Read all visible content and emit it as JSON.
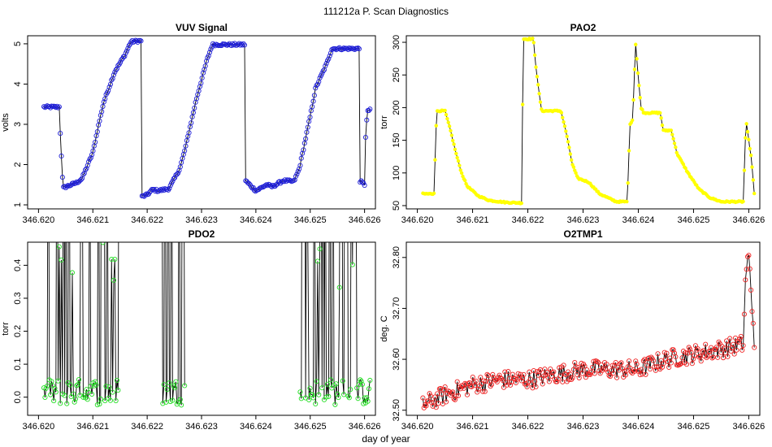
{
  "figure": {
    "title": "111212a   P. Scan Diagnostics",
    "xlabel": "day of year"
  },
  "chart_data": [
    {
      "type": "line",
      "title": "VUV Signal",
      "ylabel": "volts",
      "color": "#1f1fd6",
      "marker": "circle",
      "xlim": [
        346.6198,
        346.6262
      ],
      "ylim": [
        0.9,
        5.2
      ],
      "xticks": [
        346.62,
        346.621,
        346.622,
        346.623,
        346.624,
        346.625,
        346.626
      ],
      "xtick_labels": [
        "346.620",
        "346.621",
        "346.622",
        "346.623",
        "346.624",
        "346.625",
        "346.626"
      ],
      "yticks": [
        1,
        2,
        3,
        4,
        5
      ],
      "ytick_labels": [
        "1",
        "2",
        "3",
        "4",
        "5"
      ],
      "x_start": 346.6201,
      "x_end": 346.6261,
      "n": 300,
      "curve": [
        [
          346.6201,
          3.43
        ],
        [
          346.6204,
          3.43
        ],
        [
          346.6204,
          2.82
        ],
        [
          346.62045,
          1.42
        ],
        [
          346.6207,
          1.55
        ],
        [
          346.6208,
          1.65
        ],
        [
          346.621,
          2.3
        ],
        [
          346.6211,
          2.95
        ],
        [
          346.6212,
          3.55
        ],
        [
          346.6214,
          4.3
        ],
        [
          346.6216,
          4.75
        ],
        [
          346.6217,
          5.05
        ],
        [
          346.6219,
          5.08
        ],
        [
          346.62185,
          2.65
        ],
        [
          346.6219,
          1.2
        ],
        [
          346.622,
          1.25
        ],
        [
          346.6221,
          1.38
        ],
        [
          346.6222,
          1.35
        ],
        [
          346.6224,
          1.4
        ],
        [
          346.6226,
          1.9
        ],
        [
          346.6227,
          2.4
        ],
        [
          346.6229,
          3.6
        ],
        [
          346.6231,
          4.6
        ],
        [
          346.6232,
          4.98
        ],
        [
          346.6238,
          4.98
        ],
        [
          346.62381,
          1.6
        ],
        [
          346.624,
          1.35
        ],
        [
          346.6242,
          1.5
        ],
        [
          346.6243,
          1.45
        ],
        [
          346.6245,
          1.6
        ],
        [
          346.6247,
          1.58
        ],
        [
          346.6248,
          1.9
        ],
        [
          346.625,
          3.2
        ],
        [
          346.6251,
          3.9
        ],
        [
          346.6253,
          4.5
        ],
        [
          346.6254,
          4.88
        ],
        [
          346.6259,
          4.88
        ],
        [
          346.62591,
          1.6
        ],
        [
          346.626,
          1.5
        ],
        [
          346.626,
          2.3
        ],
        [
          346.62605,
          3.3
        ],
        [
          346.6261,
          3.38
        ]
      ],
      "jitter": 0.03
    },
    {
      "type": "line",
      "title": "PAO2",
      "ylabel": "torr",
      "color": "#ffff00",
      "marker": "dot",
      "xlim": [
        346.6198,
        346.6262
      ],
      "ylim": [
        45,
        310
      ],
      "xticks": [
        346.62,
        346.621,
        346.622,
        346.623,
        346.624,
        346.625,
        346.626
      ],
      "xtick_labels": [
        "346.620",
        "346.621",
        "346.622",
        "346.623",
        "346.624",
        "346.625",
        "346.626"
      ],
      "yticks": [
        50,
        100,
        150,
        200,
        250,
        300
      ],
      "ytick_labels": [
        "50",
        "100",
        "150",
        "200",
        "250",
        "300"
      ],
      "x_start": 346.6201,
      "x_end": 346.6261,
      "n": 300,
      "curve": [
        [
          346.6201,
          68
        ],
        [
          346.6203,
          68
        ],
        [
          346.62035,
          195
        ],
        [
          346.6205,
          195
        ],
        [
          346.6206,
          165
        ],
        [
          346.6207,
          130
        ],
        [
          346.6208,
          100
        ],
        [
          346.6209,
          80
        ],
        [
          346.6211,
          65
        ],
        [
          346.6213,
          58
        ],
        [
          346.6216,
          55
        ],
        [
          346.6219,
          54
        ],
        [
          346.62191,
          305
        ],
        [
          346.6221,
          305
        ],
        [
          346.62215,
          260
        ],
        [
          346.6222,
          225
        ],
        [
          346.62225,
          195
        ],
        [
          346.6226,
          195
        ],
        [
          346.6227,
          160
        ],
        [
          346.6228,
          115
        ],
        [
          346.6229,
          92
        ],
        [
          346.6231,
          86
        ],
        [
          346.6233,
          68
        ],
        [
          346.6236,
          56
        ],
        [
          346.6238,
          56
        ],
        [
          346.62385,
          175
        ],
        [
          346.6239,
          182
        ],
        [
          346.62395,
          300
        ],
        [
          346.624,
          245
        ],
        [
          346.62405,
          200
        ],
        [
          346.6241,
          192
        ],
        [
          346.6244,
          192
        ],
        [
          346.62445,
          165
        ],
        [
          346.6246,
          165
        ],
        [
          346.6247,
          130
        ],
        [
          346.6249,
          100
        ],
        [
          346.6251,
          75
        ],
        [
          346.6253,
          62
        ],
        [
          346.6255,
          56
        ],
        [
          346.6259,
          56
        ],
        [
          346.62595,
          180
        ],
        [
          346.62605,
          120
        ],
        [
          346.6261,
          68
        ]
      ],
      "jitter": 1.0
    },
    {
      "type": "line",
      "title": "PDO2",
      "ylabel": "torr",
      "color": "#22dd22",
      "marker": "circle",
      "xlim": [
        346.6198,
        346.6262
      ],
      "ylim": [
        -0.055,
        0.47
      ],
      "xticks": [
        346.62,
        346.621,
        346.622,
        346.623,
        346.624,
        346.625,
        346.626
      ],
      "xtick_labels": [
        "346.620",
        "346.621",
        "346.622",
        "346.623",
        "346.624",
        "346.625",
        "346.626"
      ],
      "yticks": [
        0.0,
        0.1,
        0.2,
        0.3,
        0.4
      ],
      "ytick_labels": [
        "0.0",
        "0.1",
        "0.2",
        "0.3",
        "0.4"
      ],
      "x_start": 346.6201,
      "x_end": 346.6261,
      "n": 300,
      "segments": [
        [
          346.6201,
          346.6215
        ],
        [
          346.6222,
          346.6227
        ],
        [
          346.6248,
          346.6261
        ]
      ],
      "jitter": 0.02
    },
    {
      "type": "line",
      "title": "O2TMP1",
      "ylabel": "deg. C",
      "color": "#ee2222",
      "marker": "circle",
      "xlim": [
        346.6198,
        346.6262
      ],
      "ylim": [
        32.49,
        32.83
      ],
      "xticks": [
        346.62,
        346.621,
        346.622,
        346.623,
        346.624,
        346.625,
        346.626
      ],
      "xtick_labels": [
        "346.620",
        "346.621",
        "346.622",
        "346.623",
        "346.624",
        "346.625",
        "346.626"
      ],
      "yticks": [
        32.5,
        32.6,
        32.7,
        32.8
      ],
      "ytick_labels": [
        "32.50",
        "32.60",
        "32.70",
        "32.80"
      ],
      "x_start": 346.6201,
      "x_end": 346.6261,
      "n": 300,
      "curve": [
        [
          346.6201,
          32.51
        ],
        [
          346.6205,
          32.53
        ],
        [
          346.621,
          32.55
        ],
        [
          346.6215,
          32.56
        ],
        [
          346.622,
          32.56
        ],
        [
          346.6225,
          32.57
        ],
        [
          346.623,
          32.58
        ],
        [
          346.6235,
          32.58
        ],
        [
          346.624,
          32.58
        ],
        [
          346.6245,
          32.6
        ],
        [
          346.625,
          32.61
        ],
        [
          346.6255,
          32.62
        ],
        [
          346.6259,
          32.63
        ],
        [
          346.62595,
          32.78
        ],
        [
          346.626,
          32.8
        ],
        [
          346.6261,
          32.64
        ]
      ],
      "jitter": 0.018
    }
  ]
}
